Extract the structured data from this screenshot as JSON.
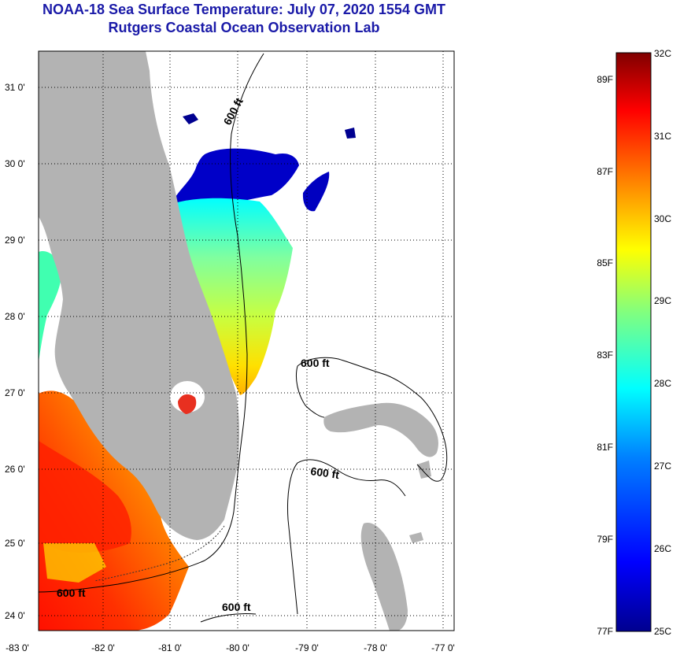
{
  "header": {
    "title": "NOAA-18 Sea Surface Temperature:  July 07, 2020 1554 GMT",
    "subtitle": "Rutgers Coastal Ocean Observation Lab"
  },
  "map": {
    "lon_range": [
      -83,
      -76.85
    ],
    "lat_range": [
      23.85,
      31.45
    ],
    "lon_ticks": [
      "-83 0'",
      "-82 0'",
      "-81 0'",
      "-80 0'",
      "-79 0'",
      "-78 0'",
      "-77 0'"
    ],
    "lat_ticks": [
      "31 0'",
      "30 0'",
      "29 0'",
      "28 0'",
      "27 0'",
      "26 0'",
      "25 0'",
      "24 0'"
    ],
    "grid": "dotted",
    "land_color": "#b3b3b3",
    "contour_labels": [
      "600 ft",
      "600 ft",
      "600 ft",
      "600 ft",
      "600 ft"
    ]
  },
  "colorbar": {
    "celsius_labels": [
      "32C",
      "31C",
      "30C",
      "29C",
      "28C",
      "27C",
      "26C",
      "25C"
    ],
    "fahrenheit_labels": [
      "89F",
      "87F",
      "85F",
      "83F",
      "81F",
      "79F",
      "77F"
    ],
    "colors": [
      "#00008f",
      "#0000ff",
      "#0080ff",
      "#00ffff",
      "#80ff80",
      "#ffff00",
      "#ff8000",
      "#ff0000",
      "#800000"
    ]
  }
}
